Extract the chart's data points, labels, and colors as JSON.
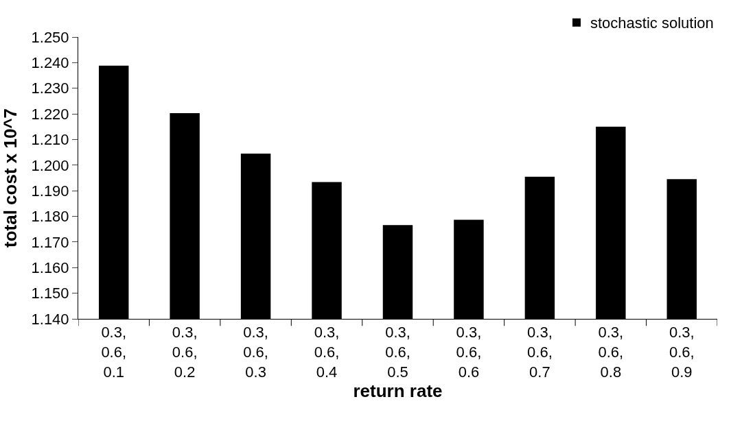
{
  "chart_data": {
    "type": "bar",
    "xlabel": "return rate",
    "ylabel": "total cost x 10^7",
    "categories": [
      "0.3, 0.6, 0.1",
      "0.3, 0.6, 0.2",
      "0.3, 0.6, 0.3",
      "0.3, 0.6, 0.4",
      "0.3, 0.6, 0.5",
      "0.3, 0.6, 0.6",
      "0.3, 0.6, 0.7",
      "0.3, 0.6, 0.8",
      "0.3, 0.6, 0.9"
    ],
    "series": [
      {
        "name": "stochastic solution",
        "color": "#000000",
        "values": [
          1.2388,
          1.2203,
          1.2045,
          1.1934,
          1.1766,
          1.1787,
          1.1955,
          1.215,
          1.1945
        ]
      }
    ],
    "ylim": [
      1.14,
      1.25
    ],
    "yticks": [
      {
        "value": 1.14,
        "label": "1.140"
      },
      {
        "value": 1.15,
        "label": "1.150"
      },
      {
        "value": 1.16,
        "label": "1.160"
      },
      {
        "value": 1.17,
        "label": "1.170"
      },
      {
        "value": 1.18,
        "label": "1.180"
      },
      {
        "value": 1.19,
        "label": "1.190"
      },
      {
        "value": 1.2,
        "label": "1.200"
      },
      {
        "value": 1.21,
        "label": "1.210"
      },
      {
        "value": 1.22,
        "label": "1.220"
      },
      {
        "value": 1.23,
        "label": "1.230"
      },
      {
        "value": 1.24,
        "label": "1.240"
      },
      {
        "value": 1.25,
        "label": "1.250"
      }
    ],
    "legend": "top right"
  }
}
